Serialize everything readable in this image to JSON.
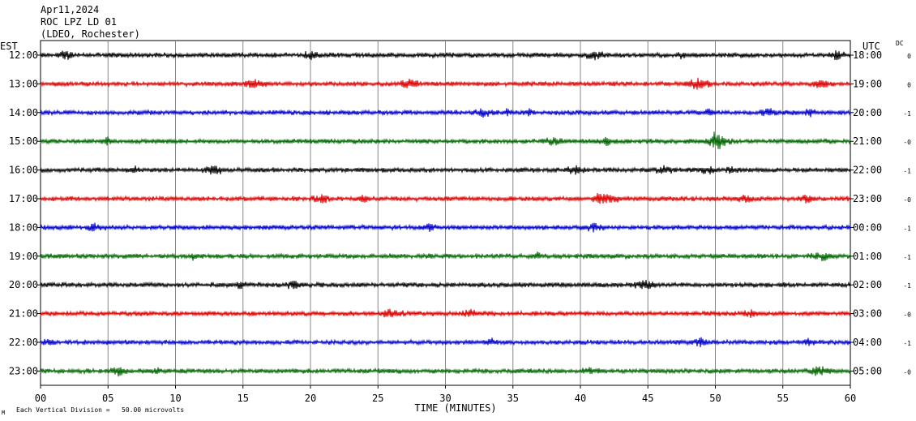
{
  "header": {
    "date": "Apr11,2024",
    "station": "ROC LPZ LD 01",
    "network": "(LDEO, Rochester)"
  },
  "left_axis_label": "EST",
  "right_axis_label": "UTC",
  "dc_label": "DC",
  "footer_note": "Each Vertical Division =   50.00 microvolts",
  "footer_mark": "M",
  "chart_data": {
    "type": "line",
    "title": "",
    "xlabel": "TIME (MINUTES)",
    "xlim": [
      0,
      60
    ],
    "x_ticks": [
      "00",
      "05",
      "10",
      "15",
      "20",
      "25",
      "30",
      "35",
      "40",
      "45",
      "50",
      "55",
      "60"
    ],
    "vertical_grid_every_minutes": 5,
    "rows": [
      {
        "est": "12:00",
        "utc": "18:00",
        "dc": "0",
        "color": "#000000"
      },
      {
        "est": "13:00",
        "utc": "19:00",
        "dc": "0",
        "color": "#dd0000"
      },
      {
        "est": "14:00",
        "utc": "20:00",
        "dc": "-1",
        "color": "#0000cc"
      },
      {
        "est": "15:00",
        "utc": "21:00",
        "dc": "-0",
        "color": "#006600"
      },
      {
        "est": "16:00",
        "utc": "22:00",
        "dc": "-1",
        "color": "#000000"
      },
      {
        "est": "17:00",
        "utc": "23:00",
        "dc": "-0",
        "color": "#dd0000"
      },
      {
        "est": "18:00",
        "utc": "00:00",
        "dc": "-1",
        "color": "#0000cc"
      },
      {
        "est": "19:00",
        "utc": "01:00",
        "dc": "-1",
        "color": "#006600"
      },
      {
        "est": "20:00",
        "utc": "02:00",
        "dc": "-1",
        "color": "#000000"
      },
      {
        "est": "21:00",
        "utc": "03:00",
        "dc": "-0",
        "color": "#dd0000"
      },
      {
        "est": "22:00",
        "utc": "04:00",
        "dc": "-1",
        "color": "#0000cc"
      },
      {
        "est": "23:00",
        "utc": "05:00",
        "dc": "-0",
        "color": "#006600"
      }
    ]
  }
}
